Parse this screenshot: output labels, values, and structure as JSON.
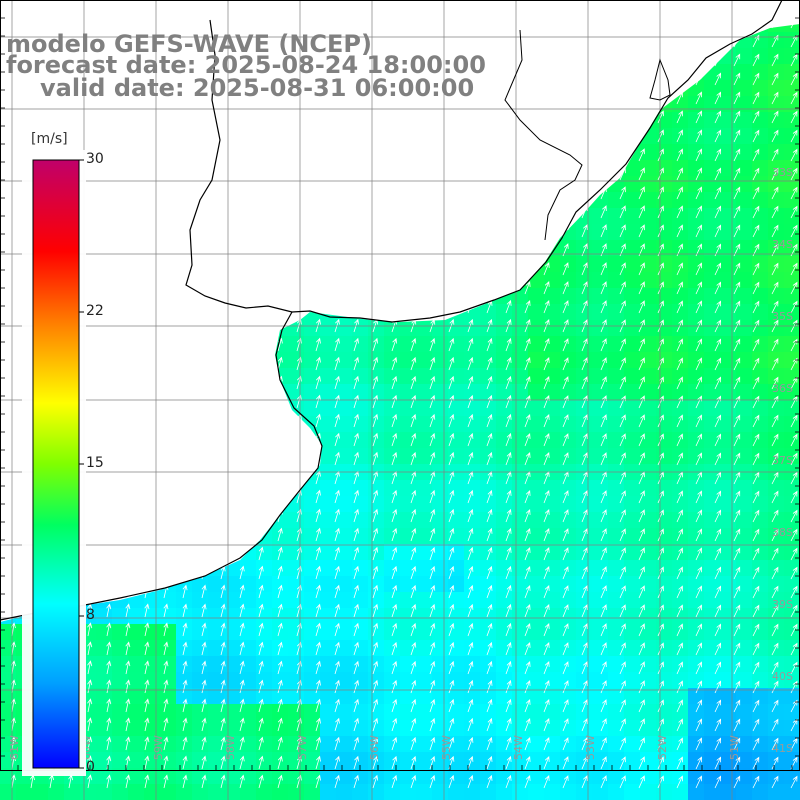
{
  "titles": {
    "model": "modelo GEFS-WAVE (NCEP)",
    "forecast": "forecast date: 2025-08-24 18:00:00",
    "valid": "valid date: 2025-08-31 06:00:00"
  },
  "colorbar": {
    "unit": "[m/s]",
    "ticks": [
      "30",
      "22",
      "15",
      "8",
      "0"
    ],
    "min": 0,
    "max": 30,
    "palette": [
      "#0000ff",
      "#00a0ff",
      "#00ffff",
      "#00ff00",
      "#ffff00",
      "#ff8000",
      "#ff0000",
      "#c0006a"
    ]
  },
  "map": {
    "land_color": "#ffffff",
    "grid_color": "#808080",
    "coast_color": "#000000",
    "arrow_color": "#ffffff",
    "wind_direction": "from south-southwest (arrows pointing north-northeast)",
    "lon_labels": [
      "61W",
      "60W",
      "59W",
      "58W",
      "57W",
      "56W",
      "55W",
      "54W",
      "53W",
      "52W",
      "51W"
    ],
    "lat_labels": [
      "33S",
      "34S",
      "35S",
      "36S",
      "37S",
      "38S",
      "39S",
      "40S",
      "41S"
    ]
  }
}
